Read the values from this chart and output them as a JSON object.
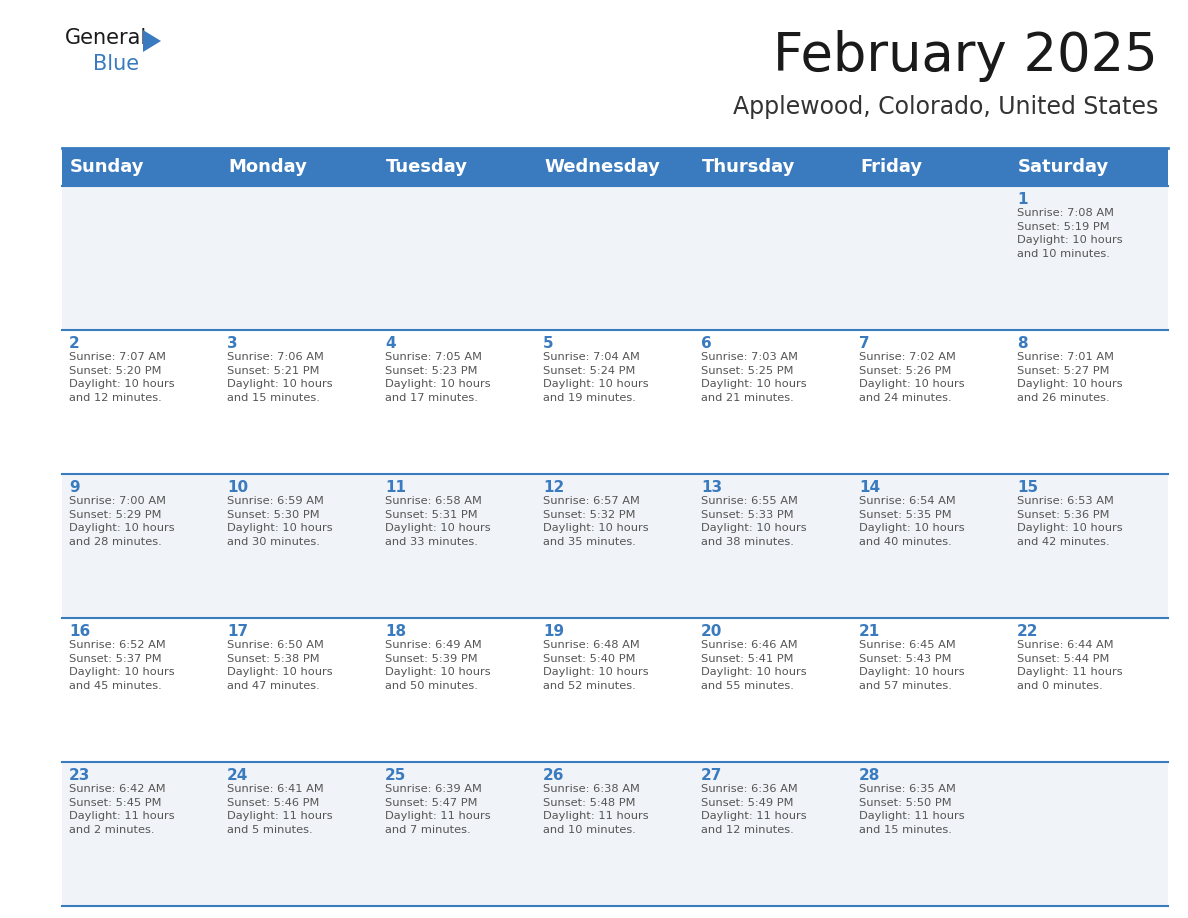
{
  "title": "February 2025",
  "subtitle": "Applewood, Colorado, United States",
  "header_bg_color": "#3a7bbf",
  "header_text_color": "#ffffff",
  "cell_bg_color_odd": "#f0f4f8",
  "cell_bg_color_even": "#ffffff",
  "day_number_color": "#3a7bbf",
  "info_text_color": "#555555",
  "border_color": "#3a7bbf",
  "days_of_week": [
    "Sunday",
    "Monday",
    "Tuesday",
    "Wednesday",
    "Thursday",
    "Friday",
    "Saturday"
  ],
  "weeks": [
    [
      {
        "day": null,
        "info": null
      },
      {
        "day": null,
        "info": null
      },
      {
        "day": null,
        "info": null
      },
      {
        "day": null,
        "info": null
      },
      {
        "day": null,
        "info": null
      },
      {
        "day": null,
        "info": null
      },
      {
        "day": "1",
        "info": "Sunrise: 7:08 AM\nSunset: 5:19 PM\nDaylight: 10 hours\nand 10 minutes."
      }
    ],
    [
      {
        "day": "2",
        "info": "Sunrise: 7:07 AM\nSunset: 5:20 PM\nDaylight: 10 hours\nand 12 minutes."
      },
      {
        "day": "3",
        "info": "Sunrise: 7:06 AM\nSunset: 5:21 PM\nDaylight: 10 hours\nand 15 minutes."
      },
      {
        "day": "4",
        "info": "Sunrise: 7:05 AM\nSunset: 5:23 PM\nDaylight: 10 hours\nand 17 minutes."
      },
      {
        "day": "5",
        "info": "Sunrise: 7:04 AM\nSunset: 5:24 PM\nDaylight: 10 hours\nand 19 minutes."
      },
      {
        "day": "6",
        "info": "Sunrise: 7:03 AM\nSunset: 5:25 PM\nDaylight: 10 hours\nand 21 minutes."
      },
      {
        "day": "7",
        "info": "Sunrise: 7:02 AM\nSunset: 5:26 PM\nDaylight: 10 hours\nand 24 minutes."
      },
      {
        "day": "8",
        "info": "Sunrise: 7:01 AM\nSunset: 5:27 PM\nDaylight: 10 hours\nand 26 minutes."
      }
    ],
    [
      {
        "day": "9",
        "info": "Sunrise: 7:00 AM\nSunset: 5:29 PM\nDaylight: 10 hours\nand 28 minutes."
      },
      {
        "day": "10",
        "info": "Sunrise: 6:59 AM\nSunset: 5:30 PM\nDaylight: 10 hours\nand 30 minutes."
      },
      {
        "day": "11",
        "info": "Sunrise: 6:58 AM\nSunset: 5:31 PM\nDaylight: 10 hours\nand 33 minutes."
      },
      {
        "day": "12",
        "info": "Sunrise: 6:57 AM\nSunset: 5:32 PM\nDaylight: 10 hours\nand 35 minutes."
      },
      {
        "day": "13",
        "info": "Sunrise: 6:55 AM\nSunset: 5:33 PM\nDaylight: 10 hours\nand 38 minutes."
      },
      {
        "day": "14",
        "info": "Sunrise: 6:54 AM\nSunset: 5:35 PM\nDaylight: 10 hours\nand 40 minutes."
      },
      {
        "day": "15",
        "info": "Sunrise: 6:53 AM\nSunset: 5:36 PM\nDaylight: 10 hours\nand 42 minutes."
      }
    ],
    [
      {
        "day": "16",
        "info": "Sunrise: 6:52 AM\nSunset: 5:37 PM\nDaylight: 10 hours\nand 45 minutes."
      },
      {
        "day": "17",
        "info": "Sunrise: 6:50 AM\nSunset: 5:38 PM\nDaylight: 10 hours\nand 47 minutes."
      },
      {
        "day": "18",
        "info": "Sunrise: 6:49 AM\nSunset: 5:39 PM\nDaylight: 10 hours\nand 50 minutes."
      },
      {
        "day": "19",
        "info": "Sunrise: 6:48 AM\nSunset: 5:40 PM\nDaylight: 10 hours\nand 52 minutes."
      },
      {
        "day": "20",
        "info": "Sunrise: 6:46 AM\nSunset: 5:41 PM\nDaylight: 10 hours\nand 55 minutes."
      },
      {
        "day": "21",
        "info": "Sunrise: 6:45 AM\nSunset: 5:43 PM\nDaylight: 10 hours\nand 57 minutes."
      },
      {
        "day": "22",
        "info": "Sunrise: 6:44 AM\nSunset: 5:44 PM\nDaylight: 11 hours\nand 0 minutes."
      }
    ],
    [
      {
        "day": "23",
        "info": "Sunrise: 6:42 AM\nSunset: 5:45 PM\nDaylight: 11 hours\nand 2 minutes."
      },
      {
        "day": "24",
        "info": "Sunrise: 6:41 AM\nSunset: 5:46 PM\nDaylight: 11 hours\nand 5 minutes."
      },
      {
        "day": "25",
        "info": "Sunrise: 6:39 AM\nSunset: 5:47 PM\nDaylight: 11 hours\nand 7 minutes."
      },
      {
        "day": "26",
        "info": "Sunrise: 6:38 AM\nSunset: 5:48 PM\nDaylight: 11 hours\nand 10 minutes."
      },
      {
        "day": "27",
        "info": "Sunrise: 6:36 AM\nSunset: 5:49 PM\nDaylight: 11 hours\nand 12 minutes."
      },
      {
        "day": "28",
        "info": "Sunrise: 6:35 AM\nSunset: 5:50 PM\nDaylight: 11 hours\nand 15 minutes."
      },
      {
        "day": null,
        "info": null
      }
    ]
  ],
  "title_fontsize": 38,
  "subtitle_fontsize": 17,
  "header_fontsize": 13,
  "day_num_fontsize": 11,
  "info_fontsize": 8.2,
  "fig_width": 11.88,
  "fig_height": 9.18,
  "dpi": 100
}
